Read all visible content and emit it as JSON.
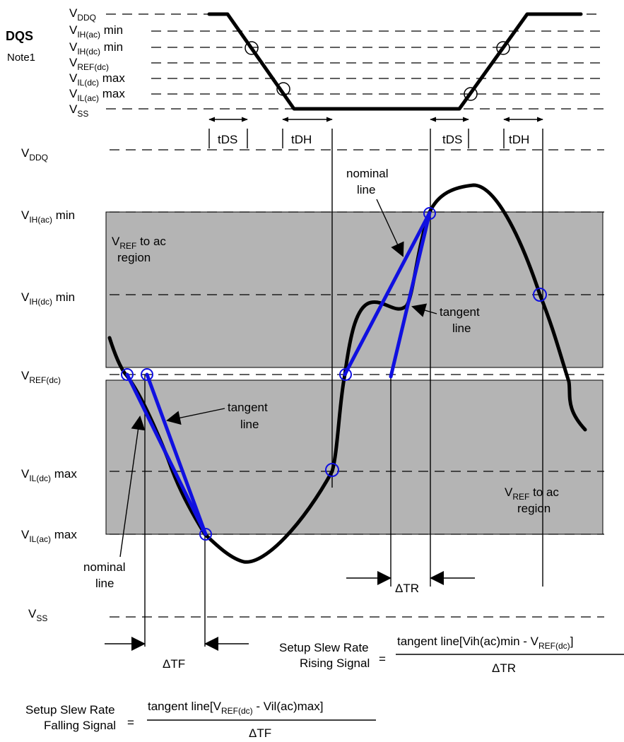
{
  "dqs": {
    "title": "DQS",
    "note": "Note1",
    "levels": {
      "vddq": {
        "main": "V",
        "sub": "DDQ",
        "suffix": ""
      },
      "vih_ac": {
        "main": "V",
        "sub": "IH(ac)",
        "suffix": " min"
      },
      "vih_dc": {
        "main": "V",
        "sub": "IH(dc)",
        "suffix": " min"
      },
      "vref": {
        "main": "V",
        "sub": "REF(dc)",
        "suffix": ""
      },
      "vil_dc": {
        "main": "V",
        "sub": "IL(dc)",
        "suffix": " max"
      },
      "vil_ac": {
        "main": "V",
        "sub": "IL(ac)",
        "suffix": " max"
      },
      "vss": {
        "main": "V",
        "sub": "SS",
        "suffix": ""
      }
    }
  },
  "timing": {
    "tds": "tDS",
    "tdh": "tDH"
  },
  "main": {
    "levels": {
      "vddq": {
        "main": "V",
        "sub": "DDQ",
        "suffix": ""
      },
      "vih_ac": {
        "main": "V",
        "sub": "IH(ac)",
        "suffix": " min"
      },
      "vih_dc": {
        "main": "V",
        "sub": "IH(dc)",
        "suffix": " min"
      },
      "vref": {
        "main": "V",
        "sub": "REF(dc)",
        "suffix": ""
      },
      "vil_dc": {
        "main": "V",
        "sub": "IL(dc)",
        "suffix": " max"
      },
      "vil_ac": {
        "main": "V",
        "sub": "IL(ac)",
        "suffix": " max"
      },
      "vss": {
        "main": "V",
        "sub": "SS",
        "suffix": ""
      }
    },
    "region_upper": {
      "line1_main": "V",
      "line1_sub": "REF",
      "line1_suffix": " to ac",
      "line2": "region"
    },
    "region_lower": {
      "line1_main": "V",
      "line1_sub": "REF",
      "line1_suffix": " to ac",
      "line2": "region"
    },
    "annotations": {
      "nominal_top_1": "nominal",
      "nominal_top_2": "line",
      "tangent_top_1": "tangent",
      "tangent_top_2": "line",
      "tangent_left_1": "tangent",
      "tangent_left_2": "line",
      "nominal_left_1": "nominal",
      "nominal_left_2": "line"
    },
    "delta_tr": "ΔTR",
    "delta_tf": "ΔTF"
  },
  "formulas": {
    "rising": {
      "label1": "Setup Slew Rate",
      "label2": "Rising Signal",
      "eq": "=",
      "num_pre": "tangent line[Vih(ac)min - V",
      "num_sub": "REF(dc)",
      "num_post": "]",
      "den": "ΔTR"
    },
    "falling": {
      "label1": "Setup Slew Rate",
      "label2": "Falling Signal",
      "eq": "=",
      "num_pre": "tangent line[V",
      "num_sub": "REF(dc)",
      "num_post": " - Vil(ac)max]",
      "den": "ΔTF"
    }
  }
}
